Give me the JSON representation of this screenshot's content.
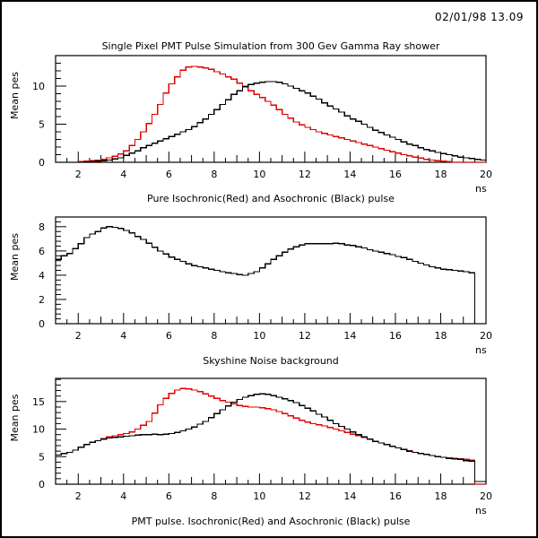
{
  "header": {
    "timestamp": "02/01/98   13.09"
  },
  "colors": {
    "isochronic": "#e00000",
    "asochronic": "#000000",
    "axis": "#000000"
  },
  "chart_data": [
    {
      "type": "line",
      "style": "histogram-step",
      "title": "Single Pixel PMT Pulse Simulation from 300 Gev Gamma Ray shower",
      "caption": "Pure Isochronic(Red) and Asochronic (Black) pulse",
      "xlabel": "ns",
      "ylabel": "Mean pes",
      "xlim": [
        1,
        20
      ],
      "ylim": [
        0,
        14
      ],
      "xticks": [
        2,
        4,
        6,
        8,
        10,
        12,
        14,
        16,
        18,
        20
      ],
      "yticks": [
        0,
        5,
        10
      ],
      "bin_width": 0.25,
      "grid": false,
      "series": [
        {
          "name": "Isochronic (Red)",
          "color": "#e00000",
          "values": [
            0,
            0,
            0,
            0,
            0.1,
            0.15,
            0.2,
            0.3,
            0.4,
            0.6,
            0.8,
            1.1,
            1.5,
            2.2,
            3.0,
            4.0,
            5.1,
            6.3,
            7.6,
            9.1,
            10.3,
            11.2,
            12.1,
            12.5,
            12.6,
            12.5,
            12.4,
            12.2,
            11.9,
            11.6,
            11.2,
            10.9,
            10.4,
            10.0,
            9.4,
            8.9,
            8.5,
            8.0,
            7.5,
            6.9,
            6.3,
            5.8,
            5.3,
            4.9,
            4.6,
            4.3,
            4.0,
            3.8,
            3.6,
            3.4,
            3.2,
            3.0,
            2.8,
            2.6,
            2.4,
            2.2,
            2.0,
            1.8,
            1.6,
            1.4,
            1.2,
            1.0,
            0.85,
            0.7,
            0.55,
            0.4,
            0.3,
            0.2,
            0.15,
            0.1,
            0,
            0,
            0,
            0,
            0,
            0
          ]
        },
        {
          "name": "Asochronic (Black)",
          "color": "#000000",
          "values": [
            0,
            0,
            0,
            0,
            0,
            0.05,
            0.1,
            0.15,
            0.2,
            0.3,
            0.45,
            0.6,
            0.9,
            1.2,
            1.5,
            1.9,
            2.2,
            2.5,
            2.8,
            3.1,
            3.4,
            3.7,
            4.0,
            4.3,
            4.7,
            5.2,
            5.7,
            6.3,
            6.9,
            7.6,
            8.2,
            8.9,
            9.4,
            9.9,
            10.2,
            10.4,
            10.5,
            10.6,
            10.6,
            10.5,
            10.3,
            10.0,
            9.7,
            9.4,
            9.1,
            8.7,
            8.3,
            7.8,
            7.4,
            7.0,
            6.6,
            6.1,
            5.7,
            5.4,
            5.0,
            4.6,
            4.2,
            3.9,
            3.6,
            3.3,
            3.0,
            2.7,
            2.4,
            2.2,
            1.9,
            1.7,
            1.5,
            1.3,
            1.15,
            1.0,
            0.85,
            0.7,
            0.6,
            0.5,
            0.4,
            0.3
          ]
        }
      ]
    },
    {
      "type": "line",
      "style": "histogram-step",
      "title": "",
      "caption": "Skyshine Noise background",
      "xlabel": "ns",
      "ylabel": "Mean pes",
      "xlim": [
        1,
        20
      ],
      "ylim": [
        0,
        8.8
      ],
      "xticks": [
        2,
        4,
        6,
        8,
        10,
        12,
        14,
        16,
        18,
        20
      ],
      "yticks": [
        0,
        2,
        4,
        6,
        8
      ],
      "bin_width": 0.25,
      "grid": false,
      "series": [
        {
          "name": "Skyshine noise",
          "color": "#000000",
          "values": [
            5.3,
            5.6,
            5.8,
            6.2,
            6.6,
            7.1,
            7.4,
            7.6,
            7.9,
            8.0,
            7.95,
            7.85,
            7.7,
            7.5,
            7.2,
            6.95,
            6.65,
            6.3,
            6.0,
            5.75,
            5.5,
            5.3,
            5.15,
            4.95,
            4.8,
            4.7,
            4.6,
            4.5,
            4.4,
            4.3,
            4.2,
            4.15,
            4.05,
            4.0,
            4.15,
            4.3,
            4.6,
            4.95,
            5.3,
            5.6,
            5.9,
            6.15,
            6.35,
            6.5,
            6.6,
            6.6,
            6.6,
            6.6,
            6.6,
            6.65,
            6.6,
            6.5,
            6.45,
            6.35,
            6.25,
            6.1,
            6.0,
            5.9,
            5.8,
            5.7,
            5.55,
            5.45,
            5.3,
            5.15,
            5.0,
            4.85,
            4.7,
            4.6,
            4.5,
            4.45,
            4.4,
            4.35,
            4.3,
            4.2,
            0,
            0
          ]
        }
      ]
    },
    {
      "type": "line",
      "style": "histogram-step",
      "title": "",
      "caption": "PMT pulse. Isochronic(Red) and Asochronic (Black) pulse",
      "xlabel": "ns",
      "ylabel": "Mean pes",
      "xlim": [
        1,
        20
      ],
      "ylim": [
        0,
        19.2
      ],
      "xticks": [
        2,
        4,
        6,
        8,
        10,
        12,
        14,
        16,
        18,
        20
      ],
      "yticks": [
        0,
        5,
        10,
        15
      ],
      "bin_width": 0.25,
      "grid": false,
      "series": [
        {
          "name": "Isochronic (Red)",
          "color": "#e00000",
          "values": [
            5.3,
            5.6,
            5.8,
            6.2,
            6.7,
            7.2,
            7.6,
            7.9,
            8.3,
            8.6,
            8.8,
            9.0,
            9.2,
            9.5,
            10.0,
            10.7,
            11.4,
            12.9,
            14.4,
            15.6,
            16.5,
            17.1,
            17.4,
            17.3,
            17.1,
            16.8,
            16.4,
            16.0,
            15.6,
            15.2,
            14.9,
            14.6,
            14.3,
            14.1,
            14.0,
            14.0,
            13.9,
            13.7,
            13.5,
            13.2,
            12.8,
            12.4,
            12.0,
            11.6,
            11.3,
            11.0,
            10.8,
            10.6,
            10.3,
            10.0,
            9.7,
            9.4,
            9.1,
            8.8,
            8.5,
            8.2,
            7.8,
            7.5,
            7.2,
            6.9,
            6.6,
            6.3,
            6.1,
            5.8,
            5.6,
            5.4,
            5.2,
            5.0,
            4.9,
            4.8,
            4.7,
            4.6,
            4.5,
            4.4,
            0,
            0
          ]
        },
        {
          "name": "Asochronic (Black)",
          "color": "#000000",
          "values": [
            5.3,
            5.6,
            5.8,
            6.2,
            6.7,
            7.2,
            7.6,
            7.9,
            8.2,
            8.4,
            8.5,
            8.6,
            8.7,
            8.8,
            8.9,
            9.0,
            9.0,
            9.1,
            9.0,
            9.1,
            9.2,
            9.4,
            9.7,
            10.0,
            10.4,
            10.9,
            11.4,
            12.1,
            12.8,
            13.5,
            14.2,
            14.9,
            15.4,
            15.8,
            16.1,
            16.3,
            16.4,
            16.3,
            16.1,
            15.8,
            15.5,
            15.2,
            14.8,
            14.3,
            13.8,
            13.3,
            12.7,
            12.2,
            11.6,
            11.0,
            10.5,
            10.0,
            9.5,
            9.0,
            8.6,
            8.2,
            7.8,
            7.5,
            7.2,
            6.9,
            6.6,
            6.3,
            6.0,
            5.8,
            5.6,
            5.4,
            5.2,
            5.0,
            4.9,
            4.7,
            4.6,
            4.5,
            4.3,
            4.2,
            0.5,
            0.5
          ]
        }
      ]
    }
  ]
}
